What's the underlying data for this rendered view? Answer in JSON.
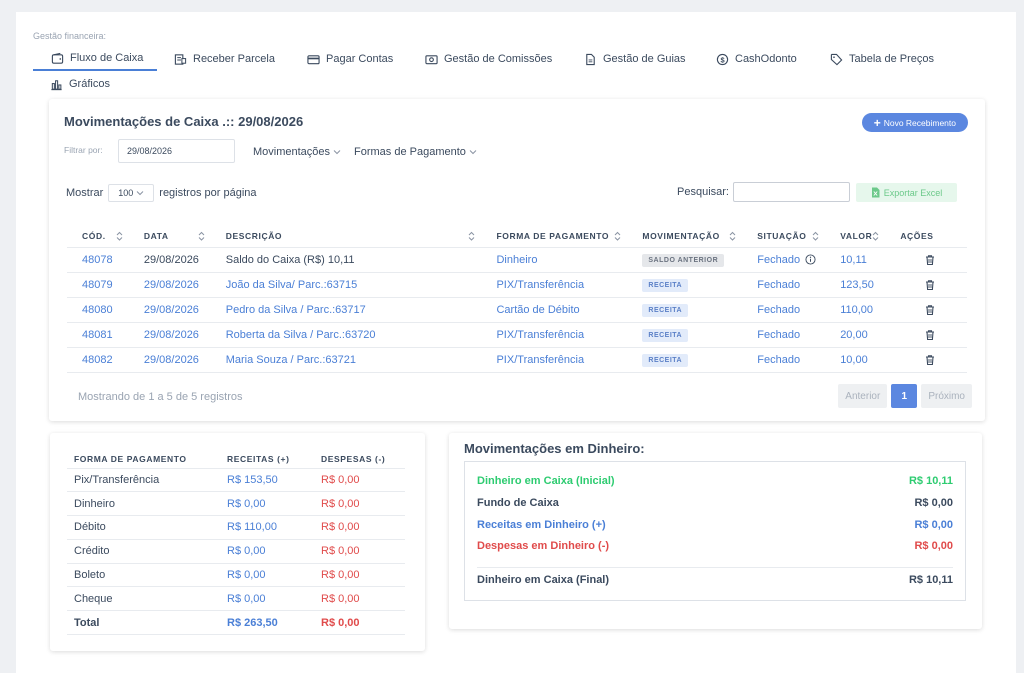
{
  "section_label": "Gestão financeira:",
  "tabs": [
    {
      "label": "Fluxo de Caixa",
      "icon": "wallet-icon",
      "active": true
    },
    {
      "label": "Receber Parcela",
      "icon": "receipt-icon"
    },
    {
      "label": "Pagar Contas",
      "icon": "credit-card-icon"
    },
    {
      "label": "Gestão de Comissões",
      "icon": "money-icon"
    },
    {
      "label": "Gestão de Guias",
      "icon": "document-icon"
    },
    {
      "label": "CashOdonto",
      "icon": "dollar-circle-icon"
    },
    {
      "label": "Tabela de Preços",
      "icon": "tag-icon"
    },
    {
      "label": "Gráficos",
      "icon": "bar-chart-icon"
    }
  ],
  "main": {
    "title": "Movimentações de Caixa .:: 29/08/2026",
    "new_button": "Novo Recebimento",
    "filter_label": "Filtrar por:",
    "date_value": "29/08/2026",
    "dropdown_movimentacoes": "Movimentações",
    "dropdown_formas": "Formas de Pagamento",
    "show_label": "Mostrar",
    "show_value": "100",
    "per_page_label": "registros por página",
    "search_label": "Pesquisar:",
    "search_value": "",
    "export_button": "Exportar Excel",
    "columns": [
      "CÓD.",
      "DATA",
      "DESCRIÇÃO",
      "FORMA DE PAGAMENTO",
      "MOVIMENTAÇÃO",
      "SITUAÇÃO",
      "VALOR",
      "AÇÕES"
    ],
    "rows": [
      {
        "cod": "48078",
        "data": "29/08/2026",
        "descricao": "Saldo do Caixa (R$) 10,11",
        "forma": "Dinheiro",
        "mov": "SALDO ANTERIOR",
        "situacao": "Fechado",
        "valor": "10,11",
        "info": true
      },
      {
        "cod": "48079",
        "data": "29/08/2026",
        "descricao": "João da Silva/ Parc.:63715",
        "forma": "PIX/Transferência",
        "mov": "RECEITA",
        "situacao": "Fechado",
        "valor": "123,50"
      },
      {
        "cod": "48080",
        "data": "29/08/2026",
        "descricao": "Pedro da Silva / Parc.:63717",
        "forma": "Cartão de Débito",
        "mov": "RECEITA",
        "situacao": "Fechado",
        "valor": "110,00"
      },
      {
        "cod": "48081",
        "data": "29/08/2026",
        "descricao": "Roberta da Silva / Parc.:63720",
        "forma": "PIX/Transferência",
        "mov": "RECEITA",
        "situacao": "Fechado",
        "valor": "20,00"
      },
      {
        "cod": "48082",
        "data": "29/08/2026",
        "descricao": "Maria Souza / Parc.:63721",
        "forma": "PIX/Transferência",
        "mov": "RECEITA",
        "situacao": "Fechado",
        "valor": "10,00"
      }
    ],
    "showing": "Mostrando de 1 a 5 de 5 registros",
    "pager": {
      "prev": "Anterior",
      "current": "1",
      "next": "Próximo"
    }
  },
  "payments": {
    "columns": [
      "FORMA DE PAGAMENTO",
      "RECEITAS (+)",
      "DESPESAS (-)"
    ],
    "rows": [
      {
        "forma": "Pix/Transferência",
        "receitas": "R$ 153,50",
        "despesas": "R$ 0,00"
      },
      {
        "forma": "Dinheiro",
        "receitas": "R$ 0,00",
        "despesas": "R$ 0,00"
      },
      {
        "forma": "Débito",
        "receitas": "R$ 110,00",
        "despesas": "R$ 0,00"
      },
      {
        "forma": "Crédito",
        "receitas": "R$ 0,00",
        "despesas": "R$ 0,00"
      },
      {
        "forma": "Boleto",
        "receitas": "R$ 0,00",
        "despesas": "R$ 0,00"
      },
      {
        "forma": "Cheque",
        "receitas": "R$ 0,00",
        "despesas": "R$ 0,00"
      }
    ],
    "total": {
      "label": "Total",
      "receitas": "R$ 263,50",
      "despesas": "R$ 0,00"
    }
  },
  "cash": {
    "title": "Movimentações em Dinheiro:",
    "rows": [
      {
        "label": "Dinheiro em Caixa (Inicial)",
        "value": "R$ 10,11",
        "color": "#2ecc71"
      },
      {
        "label": "Fundo de Caixa",
        "value": "R$ 0,00",
        "color": "#3b4a5e"
      },
      {
        "label": "Receitas em Dinheiro (+)",
        "value": "R$ 0,00",
        "color": "#4a7fd6"
      },
      {
        "label": "Despesas em Dinheiro (-)",
        "value": "R$ 0,00",
        "color": "#e04b4b"
      },
      {
        "label": "Dinheiro em Caixa (Final)",
        "value": "R$ 10,11",
        "color": "#3b4a5e"
      }
    ]
  },
  "colors": {
    "accent": "#5b87e0",
    "link": "#4a7fd6",
    "positive": "#2ecc71",
    "negative": "#e04b4b"
  }
}
